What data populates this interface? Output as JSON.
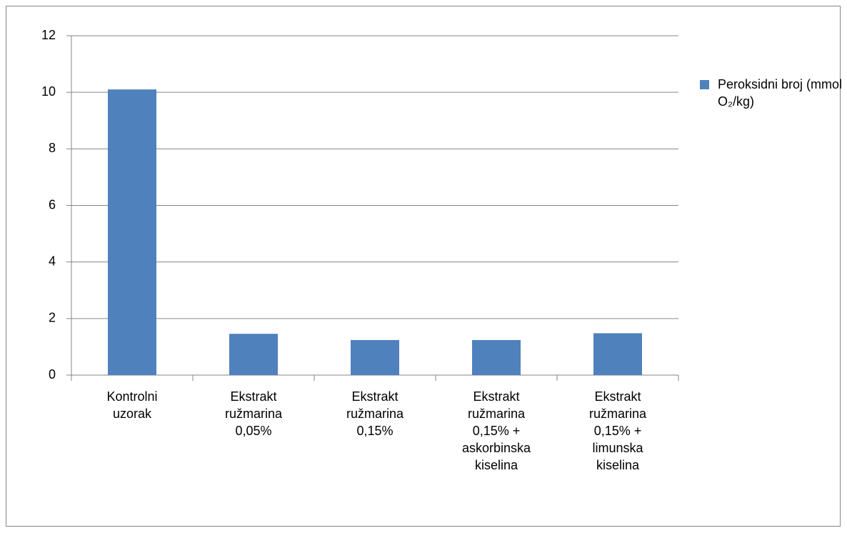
{
  "chart_data": {
    "type": "bar",
    "categories": [
      "Kontrolni uzorak",
      "Ekstrakt ružmarina 0,05%",
      "Ekstrakt ružmarina 0,15%",
      "Ekstrakt ružmarina 0,15% + askorbinska kiselina",
      "Ekstrakt ružmarina 0,15% + limunska kiselina"
    ],
    "series": [
      {
        "name": "Peroksidni broj (mmol O₂/kg)",
        "color": "#4f81bd",
        "values": [
          10.1,
          1.46,
          1.24,
          1.24,
          1.48
        ]
      }
    ],
    "ylim": [
      0,
      12
    ],
    "yticks": [
      0,
      2,
      4,
      6,
      8,
      10,
      12
    ],
    "grid": true,
    "legend": "right"
  }
}
